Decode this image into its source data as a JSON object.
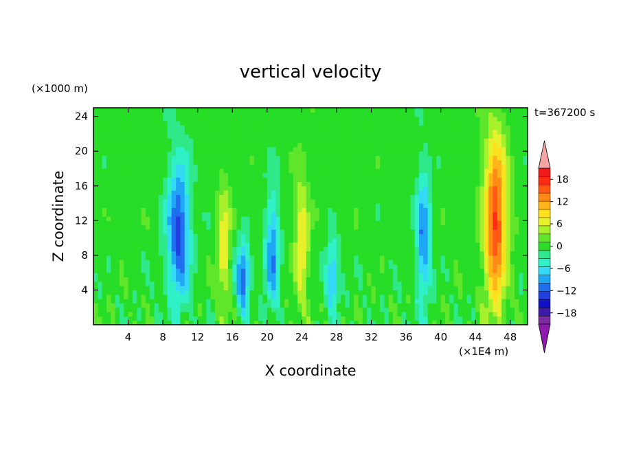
{
  "chart_data": {
    "type": "heatmap",
    "title": "vertical velocity",
    "xlabel": "X coordinate",
    "ylabel": "Z coordinate",
    "x_unit": "(×1E4 m)",
    "y_unit": "(×1000 m)",
    "time_label": "t=367200 s",
    "xlim": [
      0,
      50
    ],
    "ylim": [
      0,
      25
    ],
    "x_ticks": [
      4,
      8,
      12,
      16,
      20,
      24,
      28,
      32,
      36,
      40,
      44,
      48
    ],
    "y_ticks": [
      4,
      8,
      12,
      16,
      20,
      24
    ],
    "colorbar": {
      "tick_values": [
        18,
        12,
        6,
        0,
        -6,
        -12,
        -18
      ],
      "tick_labels": [
        "18",
        "12",
        "6",
        "0",
        "−6",
        "−12",
        "−18"
      ],
      "range": [
        -21,
        21
      ],
      "colors": [
        "#7b2c9e",
        "#3b1aa8",
        "#1010c8",
        "#1f3fe0",
        "#1f6fee",
        "#1fa6f5",
        "#33d9f5",
        "#30f0c8",
        "#2fe88a",
        "#27dd27",
        "#5fe62a",
        "#a8f02c",
        "#e8f02c",
        "#ffe01e",
        "#ffb51a",
        "#ff8a17",
        "#ff5a14",
        "#ff2a12",
        "#f01a1a"
      ],
      "over_color": "#f6a3a3",
      "under_color": "#8f1ab0"
    },
    "features": [
      {
        "x": 9.8,
        "z_low": 1.5,
        "z_high": 20,
        "min_w": -13
      },
      {
        "x": 15,
        "z_low": 1,
        "z_high": 17,
        "min_w": 7
      },
      {
        "x": 17.2,
        "z_low": 1,
        "z_high": 10,
        "min_w": -12
      },
      {
        "x": 20.6,
        "z_low": 1,
        "z_high": 16,
        "min_w": -10
      },
      {
        "x": 24,
        "z_low": 1,
        "z_high": 18,
        "min_w": 8
      },
      {
        "x": 27.5,
        "z_low": 1,
        "z_high": 10,
        "min_w": -9
      },
      {
        "x": 38,
        "z_low": 1,
        "z_high": 19,
        "min_w": -10
      },
      {
        "x": 46.3,
        "z_low": 1,
        "z_high": 23,
        "min_w": 17
      }
    ]
  }
}
